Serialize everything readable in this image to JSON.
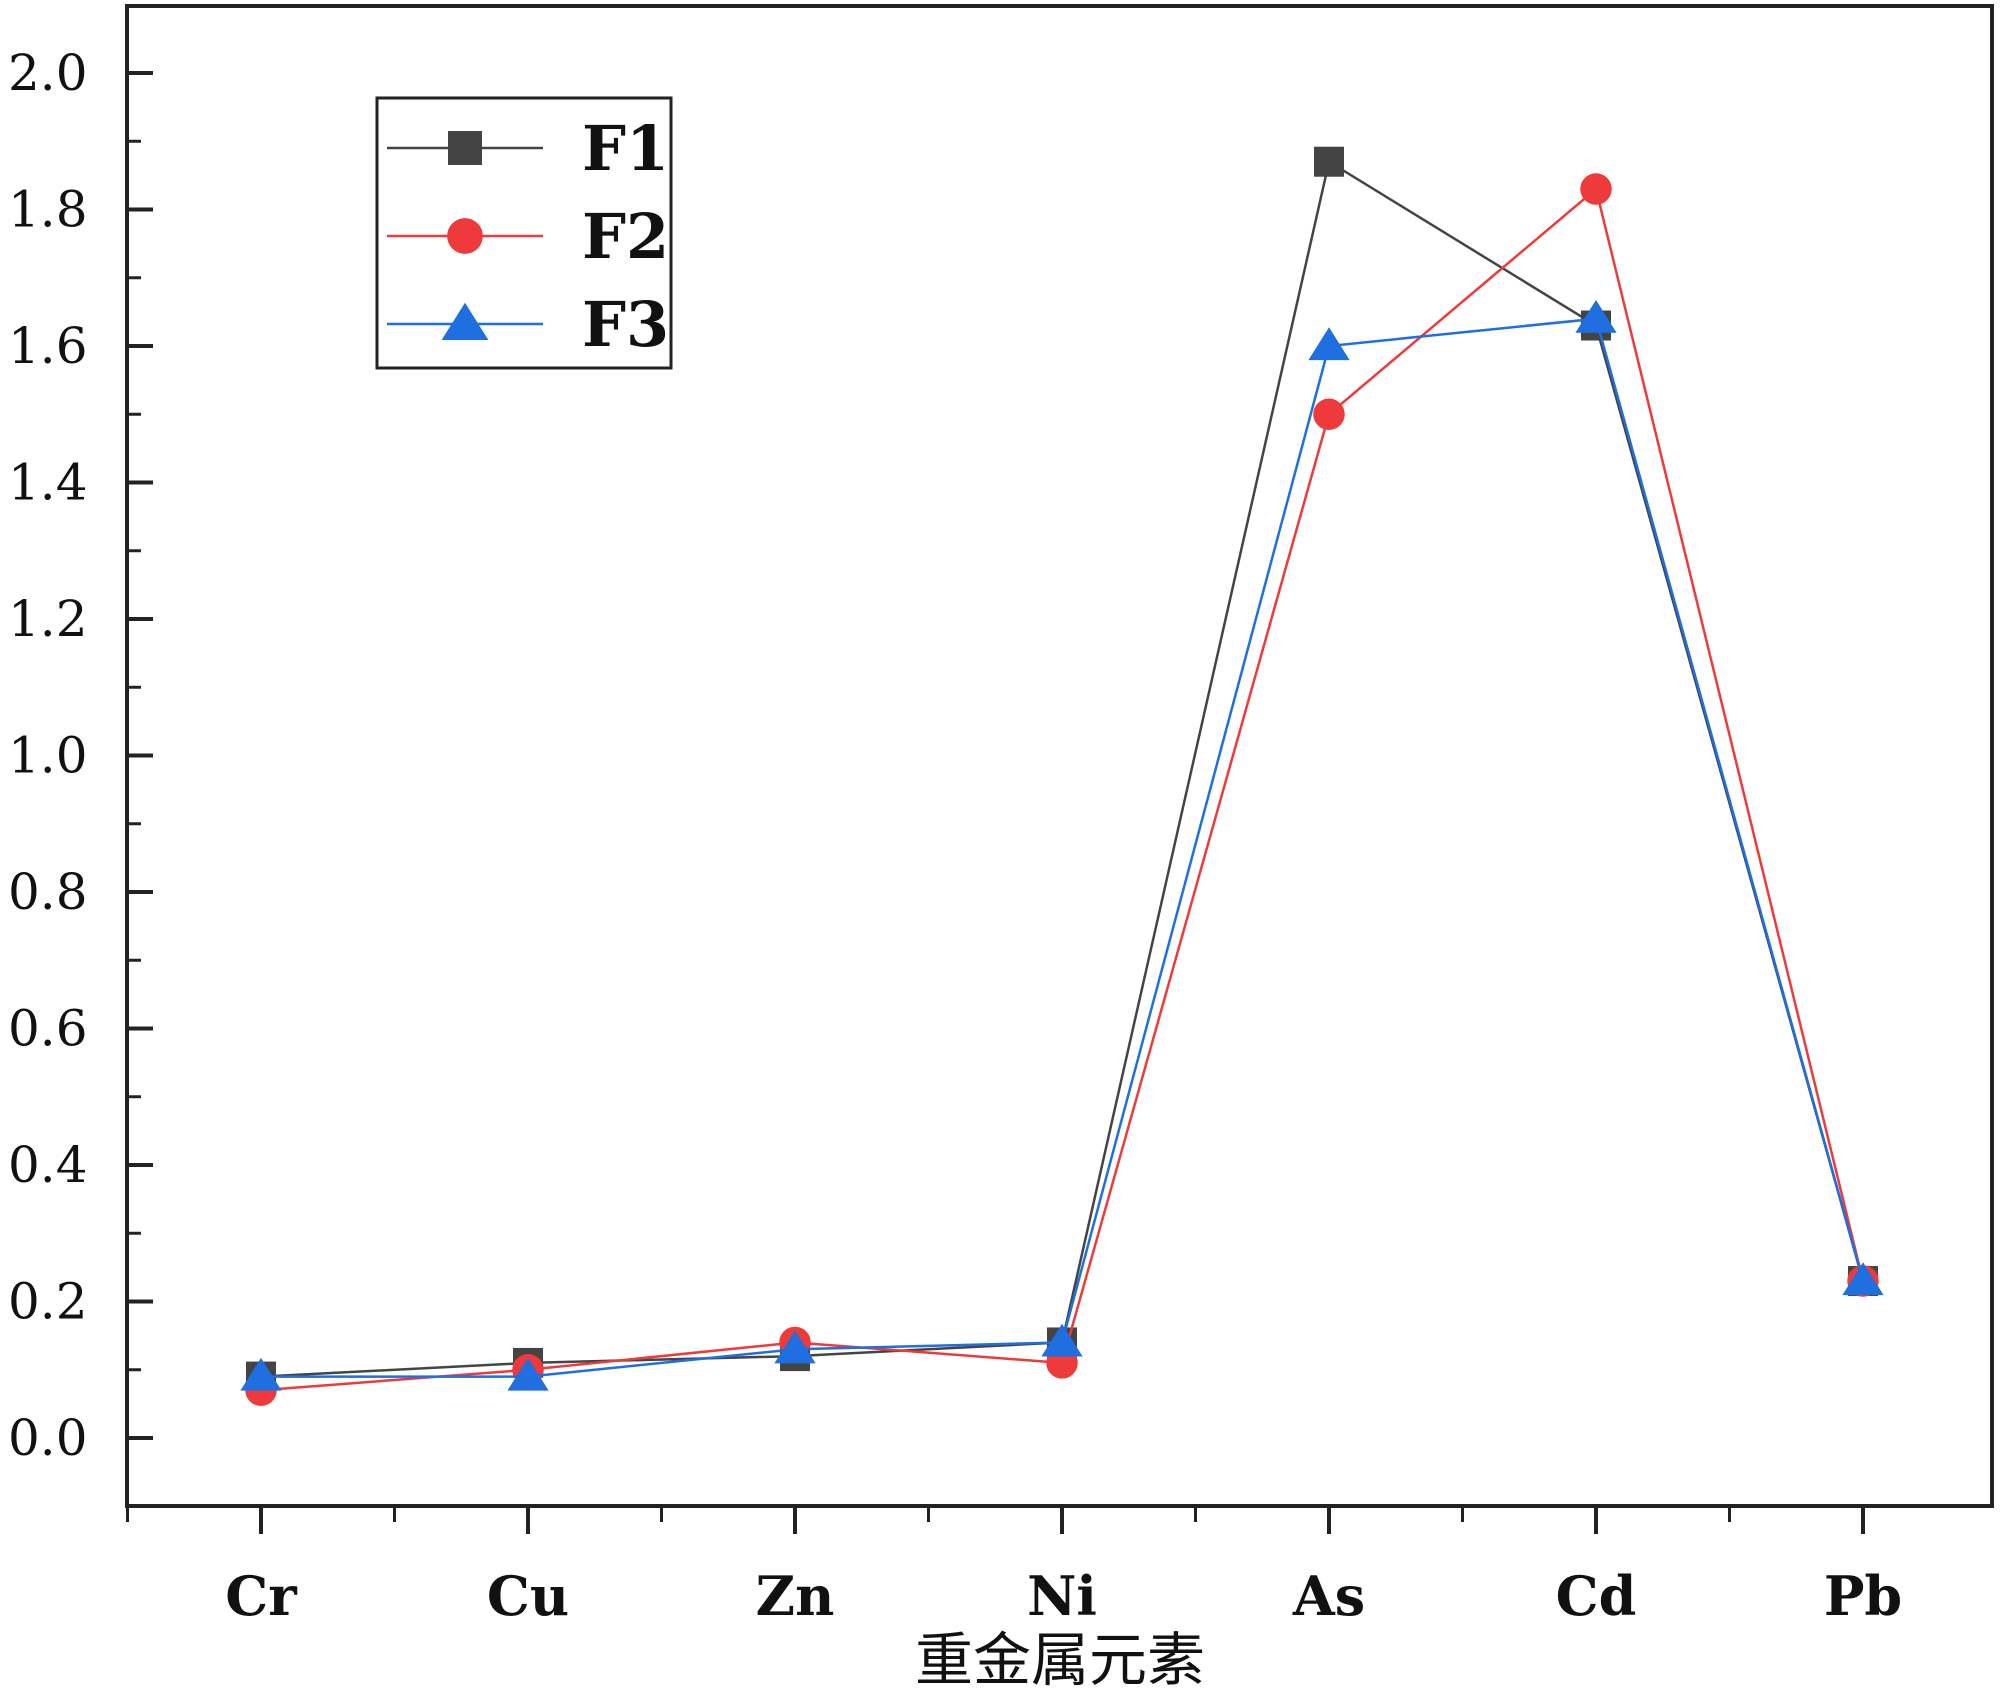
{
  "chart_data": {
    "type": "line",
    "title": "",
    "xlabel": "重金属元素",
    "ylabel": "",
    "categories": [
      "Cr",
      "Cu",
      "Zn",
      "Ni",
      "As",
      "Cd",
      "Pb"
    ],
    "ylim": [
      -0.1,
      2.1
    ],
    "yticks": [
      "0.0",
      "0.2",
      "0.4",
      "0.6",
      "0.8",
      "1.0",
      "1.2",
      "1.4",
      "1.6",
      "1.8",
      "2.0"
    ],
    "legend_position": "top-left",
    "grid": false,
    "series": [
      {
        "name": "F1",
        "color": "#444444",
        "marker": "square",
        "values": [
          0.09,
          0.11,
          0.12,
          0.14,
          1.87,
          1.63,
          0.23
        ]
      },
      {
        "name": "F2",
        "color": "#ee3a3a",
        "marker": "circle",
        "values": [
          0.07,
          0.1,
          0.14,
          0.11,
          1.5,
          1.83,
          0.23
        ]
      },
      {
        "name": "F3",
        "color": "#1f6fe0",
        "marker": "triangle",
        "values": [
          0.09,
          0.09,
          0.13,
          0.14,
          1.6,
          1.64,
          0.23
        ]
      }
    ]
  }
}
